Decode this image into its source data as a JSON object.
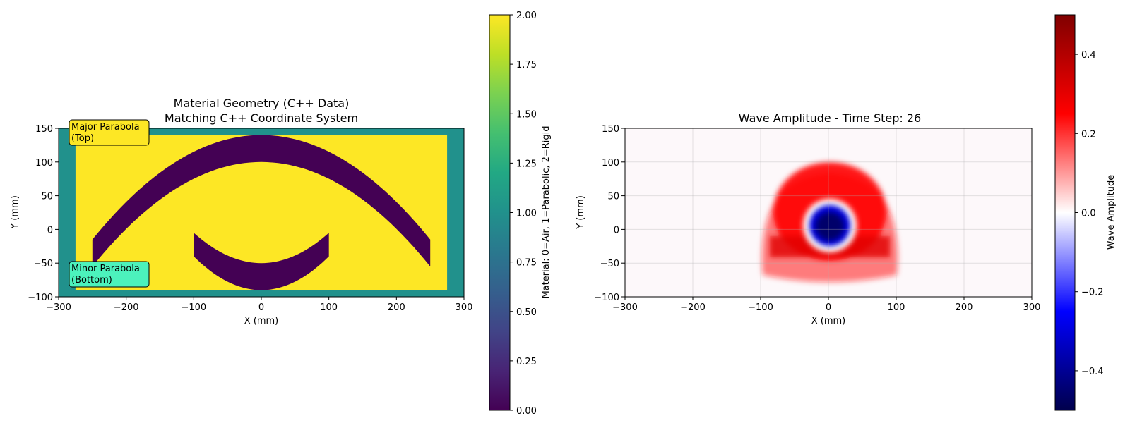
{
  "chart_data": [
    {
      "type": "heatmap",
      "title_line1": "Material Geometry (C++ Data)",
      "title_line2": "Matching C++ Coordinate System",
      "xlabel": "X (mm)",
      "ylabel": "Y (mm)",
      "xlim": [
        -300,
        300
      ],
      "ylim": [
        -100,
        150
      ],
      "xticks": [
        -300,
        -200,
        -100,
        0,
        100,
        200,
        300
      ],
      "yticks": [
        -100,
        -50,
        0,
        50,
        100,
        150
      ],
      "rigid_box": {
        "x": [
          -275,
          275
        ],
        "y": [
          -90,
          140
        ]
      },
      "major_parabola": {
        "y_at_center_top": 140,
        "y_at_center_bottom": 100,
        "x_end": 250,
        "y_end_top": -15,
        "y_end_bottom": -55
      },
      "minor_parabola": {
        "y_at_center_top": -50,
        "y_at_center_bottom": -90,
        "x_end": 100,
        "y_end_top": -5,
        "y_end_bottom": -40
      },
      "colormap": "viridis",
      "colors": {
        "air": "#440154",
        "parabolic": "#21918c",
        "rigid": "#fde725"
      },
      "annotations": [
        {
          "line1": "Major Parabola",
          "line2": "(Top)",
          "bg": "#fde725"
        },
        {
          "line1": "Minor Parabola",
          "line2": "(Bottom)",
          "bg": "#4cf2bc"
        }
      ],
      "colorbar": {
        "label": "Material: 0=Air, 1=Parabolic, 2=Rigid",
        "range": [
          0,
          2
        ],
        "ticks": [
          "0.00",
          "0.25",
          "0.50",
          "0.75",
          "1.00",
          "1.25",
          "1.50",
          "1.75",
          "2.00"
        ]
      }
    },
    {
      "type": "heatmap",
      "title": "Wave Amplitude - Time Step: 26",
      "xlabel": "X (mm)",
      "ylabel": "Y (mm)",
      "xlim": [
        -300,
        300
      ],
      "ylim": [
        -100,
        150
      ],
      "xticks": [
        -300,
        -200,
        -100,
        0,
        100,
        200,
        300
      ],
      "yticks": [
        -100,
        -50,
        0,
        50,
        100,
        150
      ],
      "grid": true,
      "colormap": "seismic",
      "wave": {
        "center": [
          0,
          5
        ],
        "negative_core_radius": 25,
        "peak_positive_radius": 55,
        "outer_radius": 80,
        "amplitude_min": -0.5,
        "amplitude_max": 0.3
      },
      "colorbar": {
        "label": "Wave Amplitude",
        "range": [
          -0.5,
          0.5
        ],
        "ticks": [
          "−0.4",
          "−0.2",
          "0.0",
          "0.2",
          "0.4"
        ]
      }
    }
  ]
}
